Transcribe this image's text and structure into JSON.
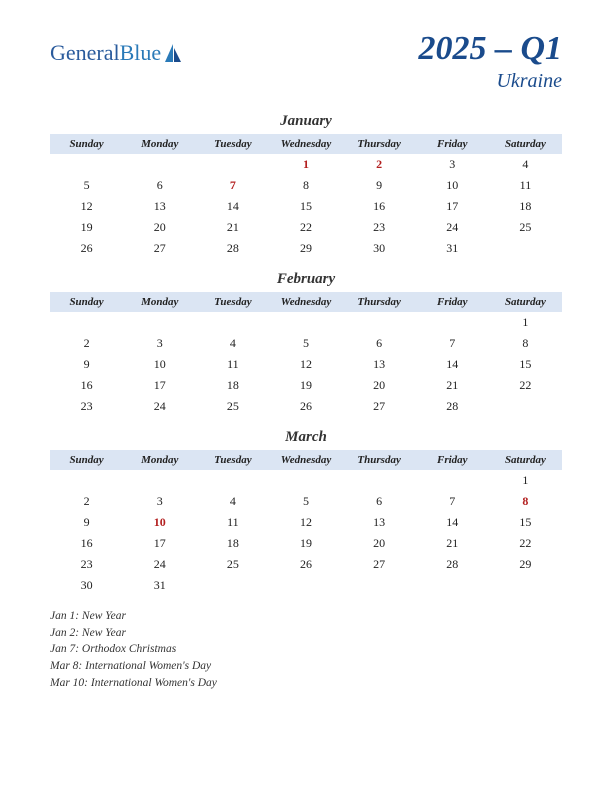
{
  "logo": {
    "text1": "General",
    "text2": "Blue"
  },
  "title": {
    "quarter": "2025 – Q1",
    "country": "Ukraine"
  },
  "colors": {
    "header_bg": "#dbe5f3",
    "holiday": "#b32020",
    "title": "#1a4b8c",
    "logo1": "#2a5b9c",
    "logo2": "#2a7ab8"
  },
  "day_headers": [
    "Sunday",
    "Monday",
    "Tuesday",
    "Wednesday",
    "Thursday",
    "Friday",
    "Saturday"
  ],
  "months": [
    {
      "name": "January",
      "weeks": [
        [
          "",
          "",
          "",
          {
            "d": "1",
            "h": true
          },
          {
            "d": "2",
            "h": true
          },
          "3",
          "4"
        ],
        [
          "5",
          "6",
          {
            "d": "7",
            "h": true
          },
          "8",
          "9",
          "10",
          "11"
        ],
        [
          "12",
          "13",
          "14",
          "15",
          "16",
          "17",
          "18"
        ],
        [
          "19",
          "20",
          "21",
          "22",
          "23",
          "24",
          "25"
        ],
        [
          "26",
          "27",
          "28",
          "29",
          "30",
          "31",
          ""
        ]
      ]
    },
    {
      "name": "February",
      "weeks": [
        [
          "",
          "",
          "",
          "",
          "",
          "",
          "1"
        ],
        [
          "2",
          "3",
          "4",
          "5",
          "6",
          "7",
          "8"
        ],
        [
          "9",
          "10",
          "11",
          "12",
          "13",
          "14",
          "15"
        ],
        [
          "16",
          "17",
          "18",
          "19",
          "20",
          "21",
          "22"
        ],
        [
          "23",
          "24",
          "25",
          "26",
          "27",
          "28",
          ""
        ]
      ]
    },
    {
      "name": "March",
      "weeks": [
        [
          "",
          "",
          "",
          "",
          "",
          "",
          "1"
        ],
        [
          "2",
          "3",
          "4",
          "5",
          "6",
          "7",
          {
            "d": "8",
            "h": true
          }
        ],
        [
          "9",
          {
            "d": "10",
            "h": true
          },
          "11",
          "12",
          "13",
          "14",
          "15"
        ],
        [
          "16",
          "17",
          "18",
          "19",
          "20",
          "21",
          "22"
        ],
        [
          "23",
          "24",
          "25",
          "26",
          "27",
          "28",
          "29"
        ],
        [
          "30",
          "31",
          "",
          "",
          "",
          "",
          ""
        ]
      ]
    }
  ],
  "holidays_list": [
    "Jan 1: New Year",
    "Jan 2: New Year",
    "Jan 7: Orthodox Christmas",
    "Mar 8: International Women's Day",
    "Mar 10: International Women's Day"
  ]
}
